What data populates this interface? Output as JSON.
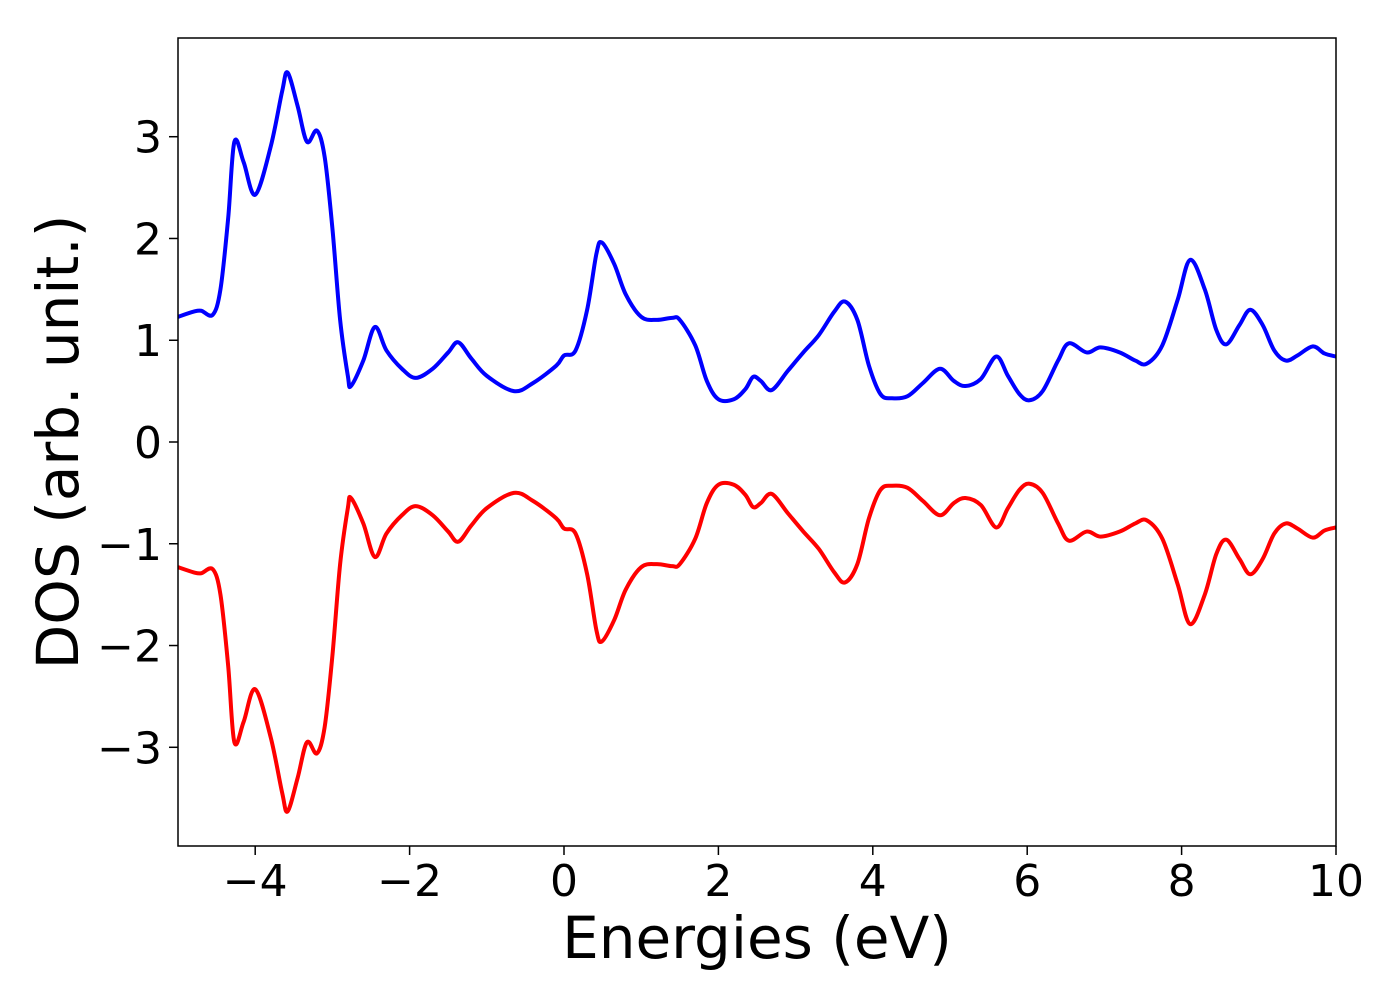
{
  "chart_data": {
    "type": "line",
    "xlabel": "Energies (eV)",
    "ylabel": "DOS (arb. unit.)",
    "x": [
      -5,
      -4.8,
      -4.7,
      -4.55,
      -4.45,
      -4.35,
      -4.27,
      -4.15,
      -4.0,
      -3.8,
      -3.65,
      -3.58,
      -3.45,
      -3.33,
      -3.2,
      -3.1,
      -3.0,
      -2.9,
      -2.8,
      -2.76,
      -2.6,
      -2.45,
      -2.3,
      -2.1,
      -1.92,
      -1.7,
      -1.5,
      -1.37,
      -1.2,
      -1.0,
      -0.65,
      -0.4,
      -0.1,
      0.0,
      0.15,
      0.3,
      0.42,
      0.49,
      0.65,
      0.8,
      1.0,
      1.2,
      1.4,
      1.5,
      1.7,
      1.85,
      2.0,
      2.2,
      2.35,
      2.45,
      2.55,
      2.69,
      2.9,
      3.1,
      3.3,
      3.5,
      3.64,
      3.8,
      3.95,
      4.1,
      4.25,
      4.45,
      4.65,
      4.87,
      5.05,
      5.2,
      5.4,
      5.6,
      5.75,
      5.9,
      6.03,
      6.2,
      6.4,
      6.54,
      6.77,
      6.95,
      7.2,
      7.4,
      7.55,
      7.75,
      7.95,
      8.11,
      8.3,
      8.45,
      8.58,
      8.75,
      8.89,
      9.05,
      9.2,
      9.35,
      9.5,
      9.7,
      9.85,
      10
    ],
    "series": [
      {
        "color": "#0000ff",
        "values": [
          1.23,
          1.28,
          1.29,
          1.25,
          1.5,
          2.2,
          2.95,
          2.75,
          2.43,
          2.9,
          3.45,
          3.63,
          3.3,
          2.95,
          3.06,
          2.8,
          2.1,
          1.2,
          0.65,
          0.55,
          0.8,
          1.13,
          0.9,
          0.72,
          0.63,
          0.72,
          0.88,
          0.98,
          0.82,
          0.65,
          0.5,
          0.58,
          0.75,
          0.85,
          0.9,
          1.3,
          1.85,
          1.96,
          1.75,
          1.45,
          1.23,
          1.2,
          1.22,
          1.2,
          0.95,
          0.6,
          0.42,
          0.42,
          0.52,
          0.64,
          0.6,
          0.51,
          0.7,
          0.88,
          1.05,
          1.28,
          1.38,
          1.2,
          0.75,
          0.47,
          0.43,
          0.45,
          0.58,
          0.72,
          0.6,
          0.55,
          0.62,
          0.84,
          0.65,
          0.47,
          0.41,
          0.5,
          0.8,
          0.97,
          0.88,
          0.93,
          0.88,
          0.8,
          0.77,
          0.95,
          1.4,
          1.79,
          1.5,
          1.1,
          0.96,
          1.15,
          1.3,
          1.15,
          0.9,
          0.8,
          0.85,
          0.94,
          0.87,
          0.84
        ]
      },
      {
        "color": "#ff0000",
        "values": [
          -1.23,
          -1.28,
          -1.29,
          -1.25,
          -1.5,
          -2.2,
          -2.95,
          -2.75,
          -2.43,
          -2.9,
          -3.45,
          -3.63,
          -3.3,
          -2.95,
          -3.06,
          -2.8,
          -2.1,
          -1.2,
          -0.65,
          -0.55,
          -0.8,
          -1.13,
          -0.9,
          -0.72,
          -0.63,
          -0.72,
          -0.88,
          -0.98,
          -0.82,
          -0.65,
          -0.5,
          -0.58,
          -0.75,
          -0.85,
          -0.9,
          -1.3,
          -1.85,
          -1.96,
          -1.75,
          -1.45,
          -1.23,
          -1.2,
          -1.22,
          -1.2,
          -0.95,
          -0.6,
          -0.42,
          -0.42,
          -0.52,
          -0.64,
          -0.6,
          -0.51,
          -0.7,
          -0.88,
          -1.05,
          -1.28,
          -1.38,
          -1.2,
          -0.75,
          -0.47,
          -0.43,
          -0.45,
          -0.58,
          -0.72,
          -0.6,
          -0.55,
          -0.62,
          -0.84,
          -0.65,
          -0.47,
          -0.41,
          -0.5,
          -0.8,
          -0.97,
          -0.88,
          -0.93,
          -0.88,
          -0.8,
          -0.77,
          -0.95,
          -1.4,
          -1.79,
          -1.5,
          -1.1,
          -0.96,
          -1.15,
          -1.3,
          -1.15,
          -0.9,
          -0.8,
          -0.85,
          -0.94,
          -0.87,
          -0.84
        ]
      }
    ],
    "xlim": [
      -5,
      10
    ],
    "xticks": [
      {
        "value": -4,
        "label": "−4"
      },
      {
        "value": -2,
        "label": "−2"
      },
      0,
      2,
      4,
      6,
      8,
      10
    ],
    "ylim": [
      -3.97,
      3.97
    ],
    "yticks": [
      {
        "value": -3,
        "label": "−3"
      },
      {
        "value": -2,
        "label": "−2"
      },
      {
        "value": -1,
        "label": "−1"
      },
      0,
      1,
      2,
      3
    ]
  }
}
